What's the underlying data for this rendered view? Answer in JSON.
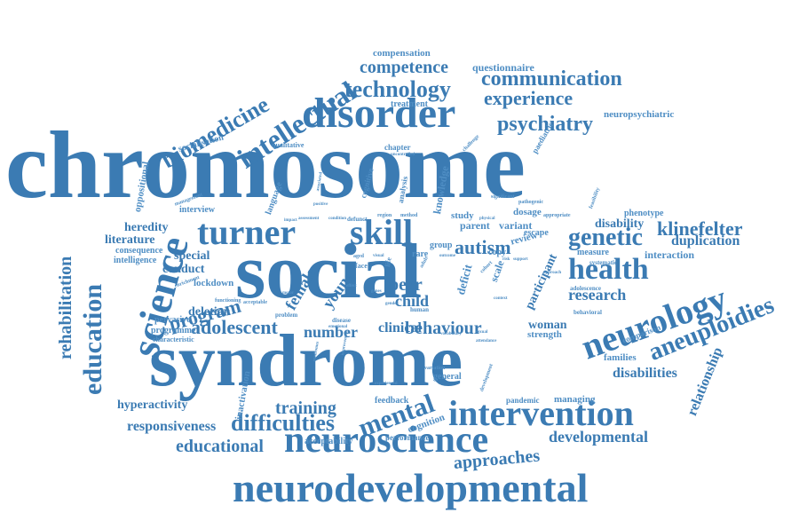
{
  "colors": {
    "primary": "#3b7bb3",
    "secondary": "#4f8ec4",
    "background": "#ffffff"
  },
  "words": {
    "chromosome": "chromosome",
    "syndrome": "syndrome",
    "social": "social",
    "disorder": "disorder",
    "neurodevelopmental": "neurodevelopmental",
    "neuroscience": "neuroscience",
    "intervention": "intervention",
    "turner": "turner",
    "skill": "skill",
    "science": "science",
    "neurology": "neurology",
    "education": "education",
    "intellectual": "intellectual",
    "biomedicine": "biomedicine",
    "psychiatry": "psychiatry",
    "technology": "technology",
    "communication": "communication",
    "competence": "competence",
    "experience": "experience",
    "genetic": "genetic",
    "health": "health",
    "aneuploidies": "aneuploidies",
    "mental": "mental",
    "difficulties": "difficulties",
    "training": "training",
    "adolescent": "adolescent",
    "behaviour": "behaviour",
    "approaches": "approaches",
    "developmental": "developmental",
    "educational": "educational",
    "responsiveness": "responsiveness",
    "rehabilitation": "rehabilitation",
    "program": "program",
    "klinefelter": "klinefelter",
    "duplication": "duplication",
    "research": "research",
    "autism": "autism",
    "peer": "peer",
    "child": "child",
    "number": "number",
    "clinical": "clinical",
    "woman": "woman",
    "relationship": "relationship",
    "disabilities": "disabilities",
    "hyperactivity": "hyperactivity",
    "heredity": "heredity",
    "literature": "literature",
    "conduct": "conduct",
    "special": "special",
    "deletion": "deletion",
    "female": "female",
    "young": "young",
    "compensation": "compensation",
    "questionnaire": "questionnaire",
    "treatment": "treatment",
    "neuropsychiatric": "neuropsychiatric",
    "socialisation": "socialisation",
    "disability": "disability",
    "interaction": "interaction",
    "phenotype": "phenotype",
    "parent": "parent",
    "variant": "variant",
    "knowledge": "knowledge",
    "consequence": "consequence",
    "intelligence": "intelligence",
    "oppositional": "oppositional",
    "interview": "interview",
    "lockdown": "lockdown",
    "pervasive": "pervasive",
    "programme": "programme",
    "characteristic": "characteristic",
    "inactivation": "inactivation",
    "feedback": "feedback",
    "cognition": "cognition",
    "acceptability": "acceptability",
    "performance": "performance",
    "pandemic": "pandemic",
    "managing": "managing",
    "strength": "strength",
    "families": "families",
    "comparison": "comparison",
    "measure": "measure",
    "review": "review",
    "dosage": "dosage",
    "study": "study",
    "participant": "participant",
    "deficit": "deficit",
    "scale": "scale",
    "general": "general",
    "language": "language",
    "cognitive": "cognitive",
    "analysis": "analysis",
    "chapter": "chapter",
    "qualitative": "qualitative",
    "paediatric": "paediatric",
    "rare": "rare",
    "group": "group",
    "copy": "copy",
    "escape": "escape",
    "face": "face",
    "life": "life",
    "adolescence": "adolescence",
    "systematic": "systematic",
    "behavioral": "behavioral",
    "problem": "problem",
    "disease": "disease",
    "management": "management",
    "enrichment": "enrichment",
    "functioning": "functioning",
    "acceptable": "acceptable",
    "significant": "significant",
    "pathogenic": "pathogenic",
    "appropriate": "appropriate",
    "feasibility": "feasibility",
    "challenge": "challenge",
    "uncontrolled": "uncontrolled",
    "method": "method",
    "region": "region",
    "defunct": "defunct",
    "condition": "condition",
    "assessment": "assessment",
    "impact": "impact",
    "positive": "positive",
    "associated": "associated",
    "human": "human",
    "variation": "variation",
    "development": "development",
    "experienced": "experienced",
    "emotional": "emotional",
    "sexual": "sexual",
    "vocabulary": "vocabulary",
    "attendance": "attendance",
    "outcome": "outcome",
    "risk": "risk",
    "aged": "aged",
    "visual": "visual",
    "cohort": "cohort",
    "adult": "adult",
    "context": "context",
    "improvement": "improvement",
    "physical": "physical",
    "syndromes": "syndromes",
    "approach": "approach",
    "support": "support",
    "effect": "effect",
    "genes": "genes",
    "gender": "gender",
    "motor": "motor"
  }
}
